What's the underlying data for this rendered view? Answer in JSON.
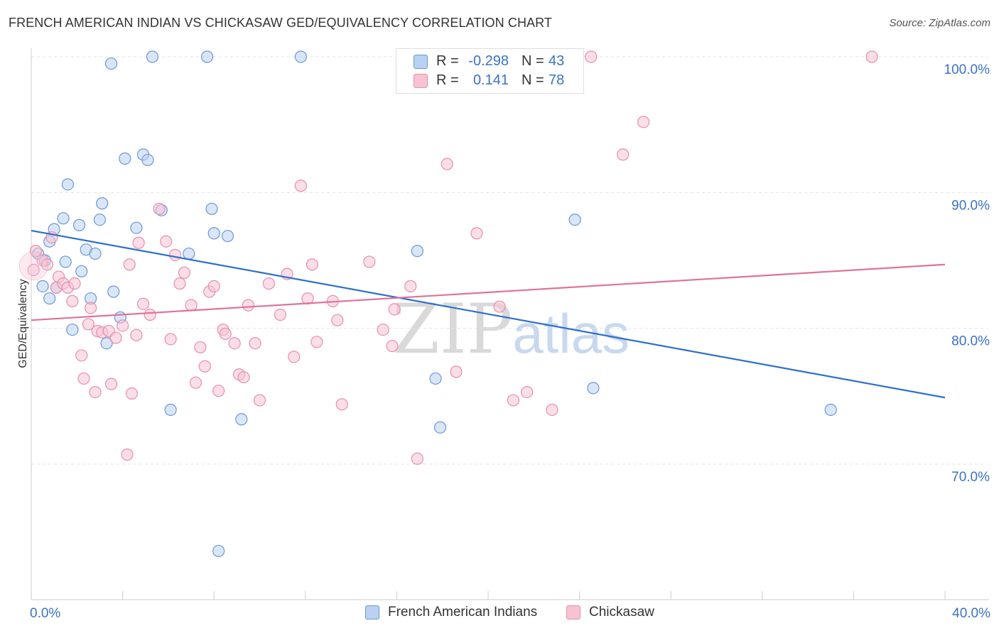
{
  "title": "FRENCH AMERICAN INDIAN VS CHICKASAW GED/EQUIVALENCY CORRELATION CHART",
  "source": "Source: ZipAtlas.com",
  "watermark": {
    "zip": "ZIP",
    "atlas": "atlas"
  },
  "legend": {
    "rows": [
      {
        "r_label": "R =",
        "r_value": "-0.298",
        "n_label": "N =",
        "n_value": "43"
      },
      {
        "r_label": "R =",
        "r_value": "0.141",
        "n_label": "N =",
        "n_value": "78"
      }
    ]
  },
  "bottom_legend": {
    "series1": "French American Indians",
    "series2": "Chickasaw"
  },
  "colors": {
    "blue_fill": "#b9d1f2",
    "blue_stroke": "#6b98d6",
    "blue_line": "#2d6fcc",
    "pink_fill": "#f7c3d3",
    "pink_stroke": "#e68fab",
    "pink_line": "#e0729a",
    "axis_text": "#3a72c4",
    "grid": "#e3e3e3"
  },
  "chart_data": {
    "type": "scatter",
    "title": "FRENCH AMERICAN INDIAN VS CHICKASAW GED/EQUIVALENCY CORRELATION CHART",
    "xlabel": "",
    "ylabel": "GED/Equivalency",
    "xlim": [
      0,
      40
    ],
    "ylim": [
      62,
      101
    ],
    "x_tick_labels": [
      {
        "value": 0,
        "label": "0.0%"
      },
      {
        "value": 40,
        "label": "40.0%"
      }
    ],
    "y_tick_labels": [
      {
        "value": 100,
        "label": "100.0%"
      },
      {
        "value": 90,
        "label": "90.0%"
      },
      {
        "value": 80,
        "label": "80.0%"
      },
      {
        "value": 70,
        "label": "70.0%"
      }
    ],
    "legend_position": "top-center",
    "grid": true,
    "series": [
      {
        "name": "French American Indians",
        "r": -0.298,
        "n": 43,
        "trend": [
          [
            0,
            87.2
          ],
          [
            40,
            74.9
          ]
        ],
        "points": [
          [
            0.3,
            85.5
          ],
          [
            0.5,
            83.1
          ],
          [
            0.6,
            85.0
          ],
          [
            0.8,
            86.4
          ],
          [
            0.8,
            82.2
          ],
          [
            1.0,
            87.3
          ],
          [
            1.1,
            83.0
          ],
          [
            1.4,
            88.1
          ],
          [
            1.5,
            84.9
          ],
          [
            1.6,
            90.6
          ],
          [
            1.8,
            79.9
          ],
          [
            2.1,
            87.6
          ],
          [
            2.2,
            84.2
          ],
          [
            2.4,
            85.8
          ],
          [
            2.6,
            82.2
          ],
          [
            2.8,
            85.5
          ],
          [
            3.0,
            88.0
          ],
          [
            3.1,
            89.2
          ],
          [
            3.3,
            78.9
          ],
          [
            3.5,
            99.5
          ],
          [
            3.6,
            82.7
          ],
          [
            3.9,
            80.8
          ],
          [
            4.1,
            92.5
          ],
          [
            4.6,
            87.4
          ],
          [
            4.9,
            92.8
          ],
          [
            5.1,
            92.4
          ],
          [
            5.3,
            100.0
          ],
          [
            5.7,
            88.7
          ],
          [
            6.1,
            74.0
          ],
          [
            6.9,
            85.5
          ],
          [
            7.7,
            100.0
          ],
          [
            7.9,
            88.8
          ],
          [
            8.0,
            87.0
          ],
          [
            8.2,
            63.6
          ],
          [
            8.6,
            86.8
          ],
          [
            9.2,
            73.3
          ],
          [
            11.8,
            100.0
          ],
          [
            16.9,
            85.7
          ],
          [
            17.7,
            76.3
          ],
          [
            17.9,
            72.7
          ],
          [
            23.8,
            88.0
          ],
          [
            24.6,
            75.6
          ],
          [
            35.0,
            74.0
          ]
        ]
      },
      {
        "name": "Chickasaw",
        "r": 0.141,
        "n": 78,
        "trend": [
          [
            0,
            80.6
          ],
          [
            40,
            84.7
          ]
        ],
        "points": [
          [
            0.1,
            84.3
          ],
          [
            0.2,
            85.7
          ],
          [
            0.5,
            85.0
          ],
          [
            0.7,
            84.7
          ],
          [
            0.9,
            86.7
          ],
          [
            1.1,
            83.0
          ],
          [
            1.2,
            83.8
          ],
          [
            1.4,
            83.3
          ],
          [
            1.6,
            83.0
          ],
          [
            1.8,
            82.0
          ],
          [
            1.9,
            83.3
          ],
          [
            2.2,
            78.0
          ],
          [
            2.3,
            76.3
          ],
          [
            2.5,
            80.3
          ],
          [
            2.6,
            81.5
          ],
          [
            2.8,
            75.3
          ],
          [
            2.9,
            79.8
          ],
          [
            3.1,
            79.7
          ],
          [
            3.4,
            79.8
          ],
          [
            3.5,
            75.9
          ],
          [
            3.7,
            79.3
          ],
          [
            4.0,
            80.2
          ],
          [
            4.2,
            70.7
          ],
          [
            4.3,
            84.7
          ],
          [
            4.4,
            75.2
          ],
          [
            4.6,
            79.5
          ],
          [
            4.7,
            86.3
          ],
          [
            4.9,
            81.8
          ],
          [
            5.2,
            81.0
          ],
          [
            5.6,
            88.8
          ],
          [
            5.9,
            86.4
          ],
          [
            6.1,
            79.2
          ],
          [
            6.3,
            85.4
          ],
          [
            6.5,
            83.3
          ],
          [
            6.7,
            84.1
          ],
          [
            7.0,
            81.7
          ],
          [
            7.2,
            76.0
          ],
          [
            7.4,
            78.6
          ],
          [
            7.6,
            77.2
          ],
          [
            7.8,
            82.7
          ],
          [
            8.0,
            83.1
          ],
          [
            8.2,
            75.4
          ],
          [
            8.4,
            79.9
          ],
          [
            8.5,
            79.6
          ],
          [
            8.9,
            78.9
          ],
          [
            9.1,
            76.6
          ],
          [
            9.3,
            76.4
          ],
          [
            9.5,
            81.7
          ],
          [
            9.8,
            78.9
          ],
          [
            10.0,
            74.7
          ],
          [
            10.4,
            83.3
          ],
          [
            10.9,
            81.0
          ],
          [
            11.2,
            84.0
          ],
          [
            11.5,
            77.9
          ],
          [
            11.8,
            90.5
          ],
          [
            12.1,
            82.2
          ],
          [
            12.3,
            84.7
          ],
          [
            12.5,
            79.0
          ],
          [
            13.2,
            82.0
          ],
          [
            13.4,
            80.6
          ],
          [
            13.6,
            74.4
          ],
          [
            14.8,
            84.9
          ],
          [
            15.4,
            79.9
          ],
          [
            15.8,
            78.7
          ],
          [
            15.9,
            81.4
          ],
          [
            16.6,
            83.1
          ],
          [
            16.9,
            70.4
          ],
          [
            18.2,
            92.1
          ],
          [
            18.6,
            76.8
          ],
          [
            19.5,
            87.0
          ],
          [
            20.5,
            81.6
          ],
          [
            21.1,
            74.7
          ],
          [
            21.7,
            75.3
          ],
          [
            22.8,
            74.0
          ],
          [
            24.5,
            100.0
          ],
          [
            25.9,
            92.8
          ],
          [
            26.8,
            95.2
          ],
          [
            36.8,
            100.0
          ]
        ]
      }
    ]
  }
}
